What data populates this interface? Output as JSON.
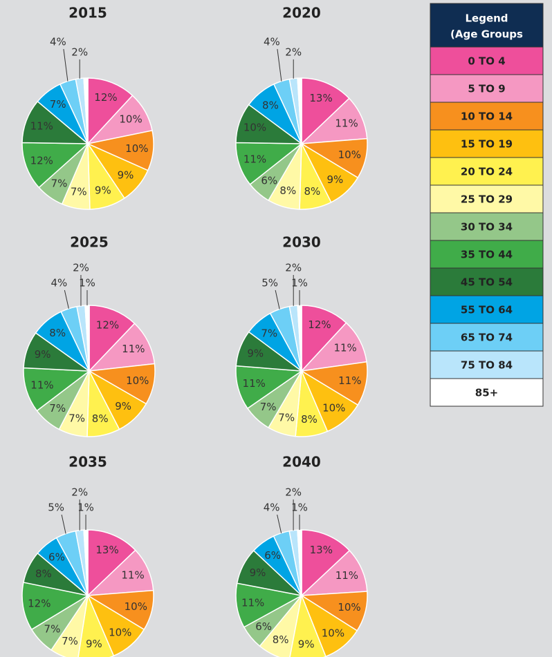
{
  "chart_data": [
    {
      "type": "pie",
      "title": "2015",
      "values": [
        12,
        10,
        10,
        9,
        9,
        7,
        7,
        12,
        11,
        7,
        4,
        2,
        1
      ],
      "value_labels": [
        "12%",
        "10%",
        "10%",
        "9%",
        "9%",
        "7%",
        "7%",
        "12%",
        "11%",
        "7%",
        "4%",
        "2%",
        null
      ]
    },
    {
      "type": "pie",
      "title": "2020",
      "values": [
        13,
        11,
        10,
        9,
        8,
        8,
        6,
        11,
        10,
        8,
        4,
        2,
        1
      ],
      "value_labels": [
        "13%",
        "11%",
        "10%",
        "9%",
        "8%",
        "8%",
        "6%",
        "11%",
        "10%",
        "8%",
        "4%",
        "2%",
        null
      ]
    },
    {
      "type": "pie",
      "title": "2025",
      "values": [
        12,
        11,
        10,
        9,
        8,
        7,
        7,
        11,
        9,
        8,
        4,
        2,
        1
      ],
      "value_labels": [
        "12%",
        "11%",
        "10%",
        "9%",
        "8%",
        "7%",
        "7%",
        "11%",
        "9%",
        "8%",
        "4%",
        "2%",
        "1%"
      ]
    },
    {
      "type": "pie",
      "title": "2030",
      "values": [
        12,
        11,
        11,
        10,
        8,
        7,
        7,
        11,
        9,
        7,
        5,
        2,
        1
      ],
      "value_labels": [
        "12%",
        "11%",
        "11%",
        "10%",
        "8%",
        "7%",
        "7%",
        "11%",
        "9%",
        "7%",
        "5%",
        "2%",
        "1%"
      ]
    },
    {
      "type": "pie",
      "title": "2035",
      "values": [
        13,
        11,
        10,
        10,
        9,
        7,
        7,
        12,
        8,
        6,
        5,
        2,
        1
      ],
      "value_labels": [
        "13%",
        "11%",
        "10%",
        "10%",
        "9%",
        "7%",
        "7%",
        "12%",
        "8%",
        "6%",
        "5%",
        "2%",
        "1%"
      ]
    },
    {
      "type": "pie",
      "title": "2040",
      "values": [
        13,
        11,
        10,
        10,
        9,
        8,
        6,
        11,
        9,
        6,
        4,
        2,
        1
      ],
      "value_labels": [
        "13%",
        "11%",
        "10%",
        "10%",
        "9%",
        "8%",
        "6%",
        "11%",
        "9%",
        "6%",
        "4%",
        "2%",
        "1%"
      ]
    }
  ],
  "legend": {
    "title": [
      "Legend",
      "(Age Groups"
    ],
    "categories": [
      "0 TO 4",
      "5 TO 9",
      "10 TO 14",
      "15 TO 19",
      "20 TO 24",
      "25 TO 29",
      "30 TO 34",
      "35 TO 44",
      "45 TO 54",
      "55 TO 64",
      "65 TO 74",
      "75 TO 84",
      "85+"
    ],
    "colors": [
      "#ee4f9b",
      "#f598c2",
      "#f7901e",
      "#fec010",
      "#fff14f",
      "#fff9a6",
      "#94c789",
      "#40ac49",
      "#2b7b3a",
      "#00a4e4",
      "#6dcff6",
      "#b9e5fb",
      "#ffffff"
    ]
  }
}
